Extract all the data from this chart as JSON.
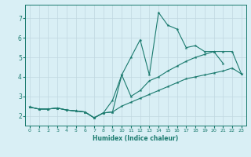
{
  "xlabel": "Humidex (Indice chaleur)",
  "background_color": "#d9eff5",
  "grid_color": "#c0d8e0",
  "line_color": "#1a7a6e",
  "xlim": [
    -0.5,
    23.5
  ],
  "ylim": [
    1.5,
    7.7
  ],
  "xticks": [
    0,
    1,
    2,
    3,
    4,
    5,
    6,
    7,
    8,
    9,
    10,
    11,
    12,
    13,
    14,
    15,
    16,
    17,
    18,
    19,
    20,
    21,
    22,
    23
  ],
  "yticks": [
    2,
    3,
    4,
    5,
    6,
    7
  ],
  "series1_x": [
    0,
    1,
    2,
    3,
    4,
    5,
    6,
    7,
    8,
    9,
    10,
    11,
    12,
    13,
    14,
    15,
    16,
    17,
    18,
    19,
    20,
    21
  ],
  "series1_y": [
    2.45,
    2.35,
    2.35,
    2.4,
    2.3,
    2.25,
    2.2,
    1.9,
    2.15,
    2.2,
    4.1,
    5.0,
    5.9,
    4.1,
    7.3,
    6.65,
    6.45,
    5.5,
    5.6,
    5.3,
    5.3,
    4.7
  ],
  "series2_x": [
    0,
    1,
    2,
    3,
    4,
    5,
    6,
    7,
    8,
    9,
    10,
    11,
    12,
    13,
    14,
    15,
    16,
    17,
    18,
    19,
    20,
    21,
    22,
    23
  ],
  "series2_y": [
    2.45,
    2.35,
    2.35,
    2.4,
    2.3,
    2.25,
    2.2,
    1.9,
    2.15,
    2.8,
    4.1,
    3.0,
    3.3,
    3.8,
    4.0,
    4.3,
    4.55,
    4.8,
    5.0,
    5.15,
    5.3,
    5.3,
    5.3,
    4.15
  ],
  "series3_x": [
    0,
    1,
    2,
    3,
    4,
    5,
    6,
    7,
    8,
    9,
    10,
    11,
    12,
    13,
    14,
    15,
    16,
    17,
    18,
    19,
    20,
    21,
    22,
    23
  ],
  "series3_y": [
    2.45,
    2.35,
    2.35,
    2.4,
    2.3,
    2.25,
    2.2,
    1.9,
    2.15,
    2.2,
    2.5,
    2.7,
    2.9,
    3.1,
    3.3,
    3.5,
    3.7,
    3.9,
    4.0,
    4.1,
    4.2,
    4.3,
    4.45,
    4.15
  ]
}
